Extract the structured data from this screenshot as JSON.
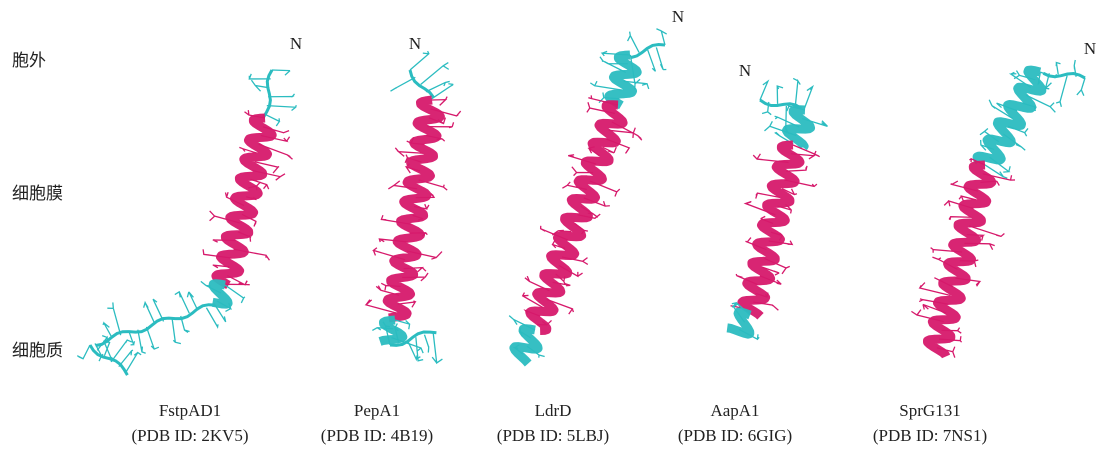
{
  "side_labels": [
    "胞外",
    "细胞膜",
    "细胞质"
  ],
  "structures": [
    {
      "name": "FstpAD1",
      "pdb": "(PDB ID: 2KV5)",
      "terminus": "N"
    },
    {
      "name": "PepA1",
      "pdb": "(PDB ID: 4B19)",
      "terminus": "N"
    },
    {
      "name": "LdrD",
      "pdb": "(PDB ID: 5LBJ)",
      "terminus": "N"
    },
    {
      "name": "AapA1",
      "pdb": "(PDB ID: 6GIG)",
      "terminus": "N"
    },
    {
      "name": "SprG131",
      "pdb": "(PDB ID: 7NS1)",
      "terminus": "N"
    }
  ]
}
